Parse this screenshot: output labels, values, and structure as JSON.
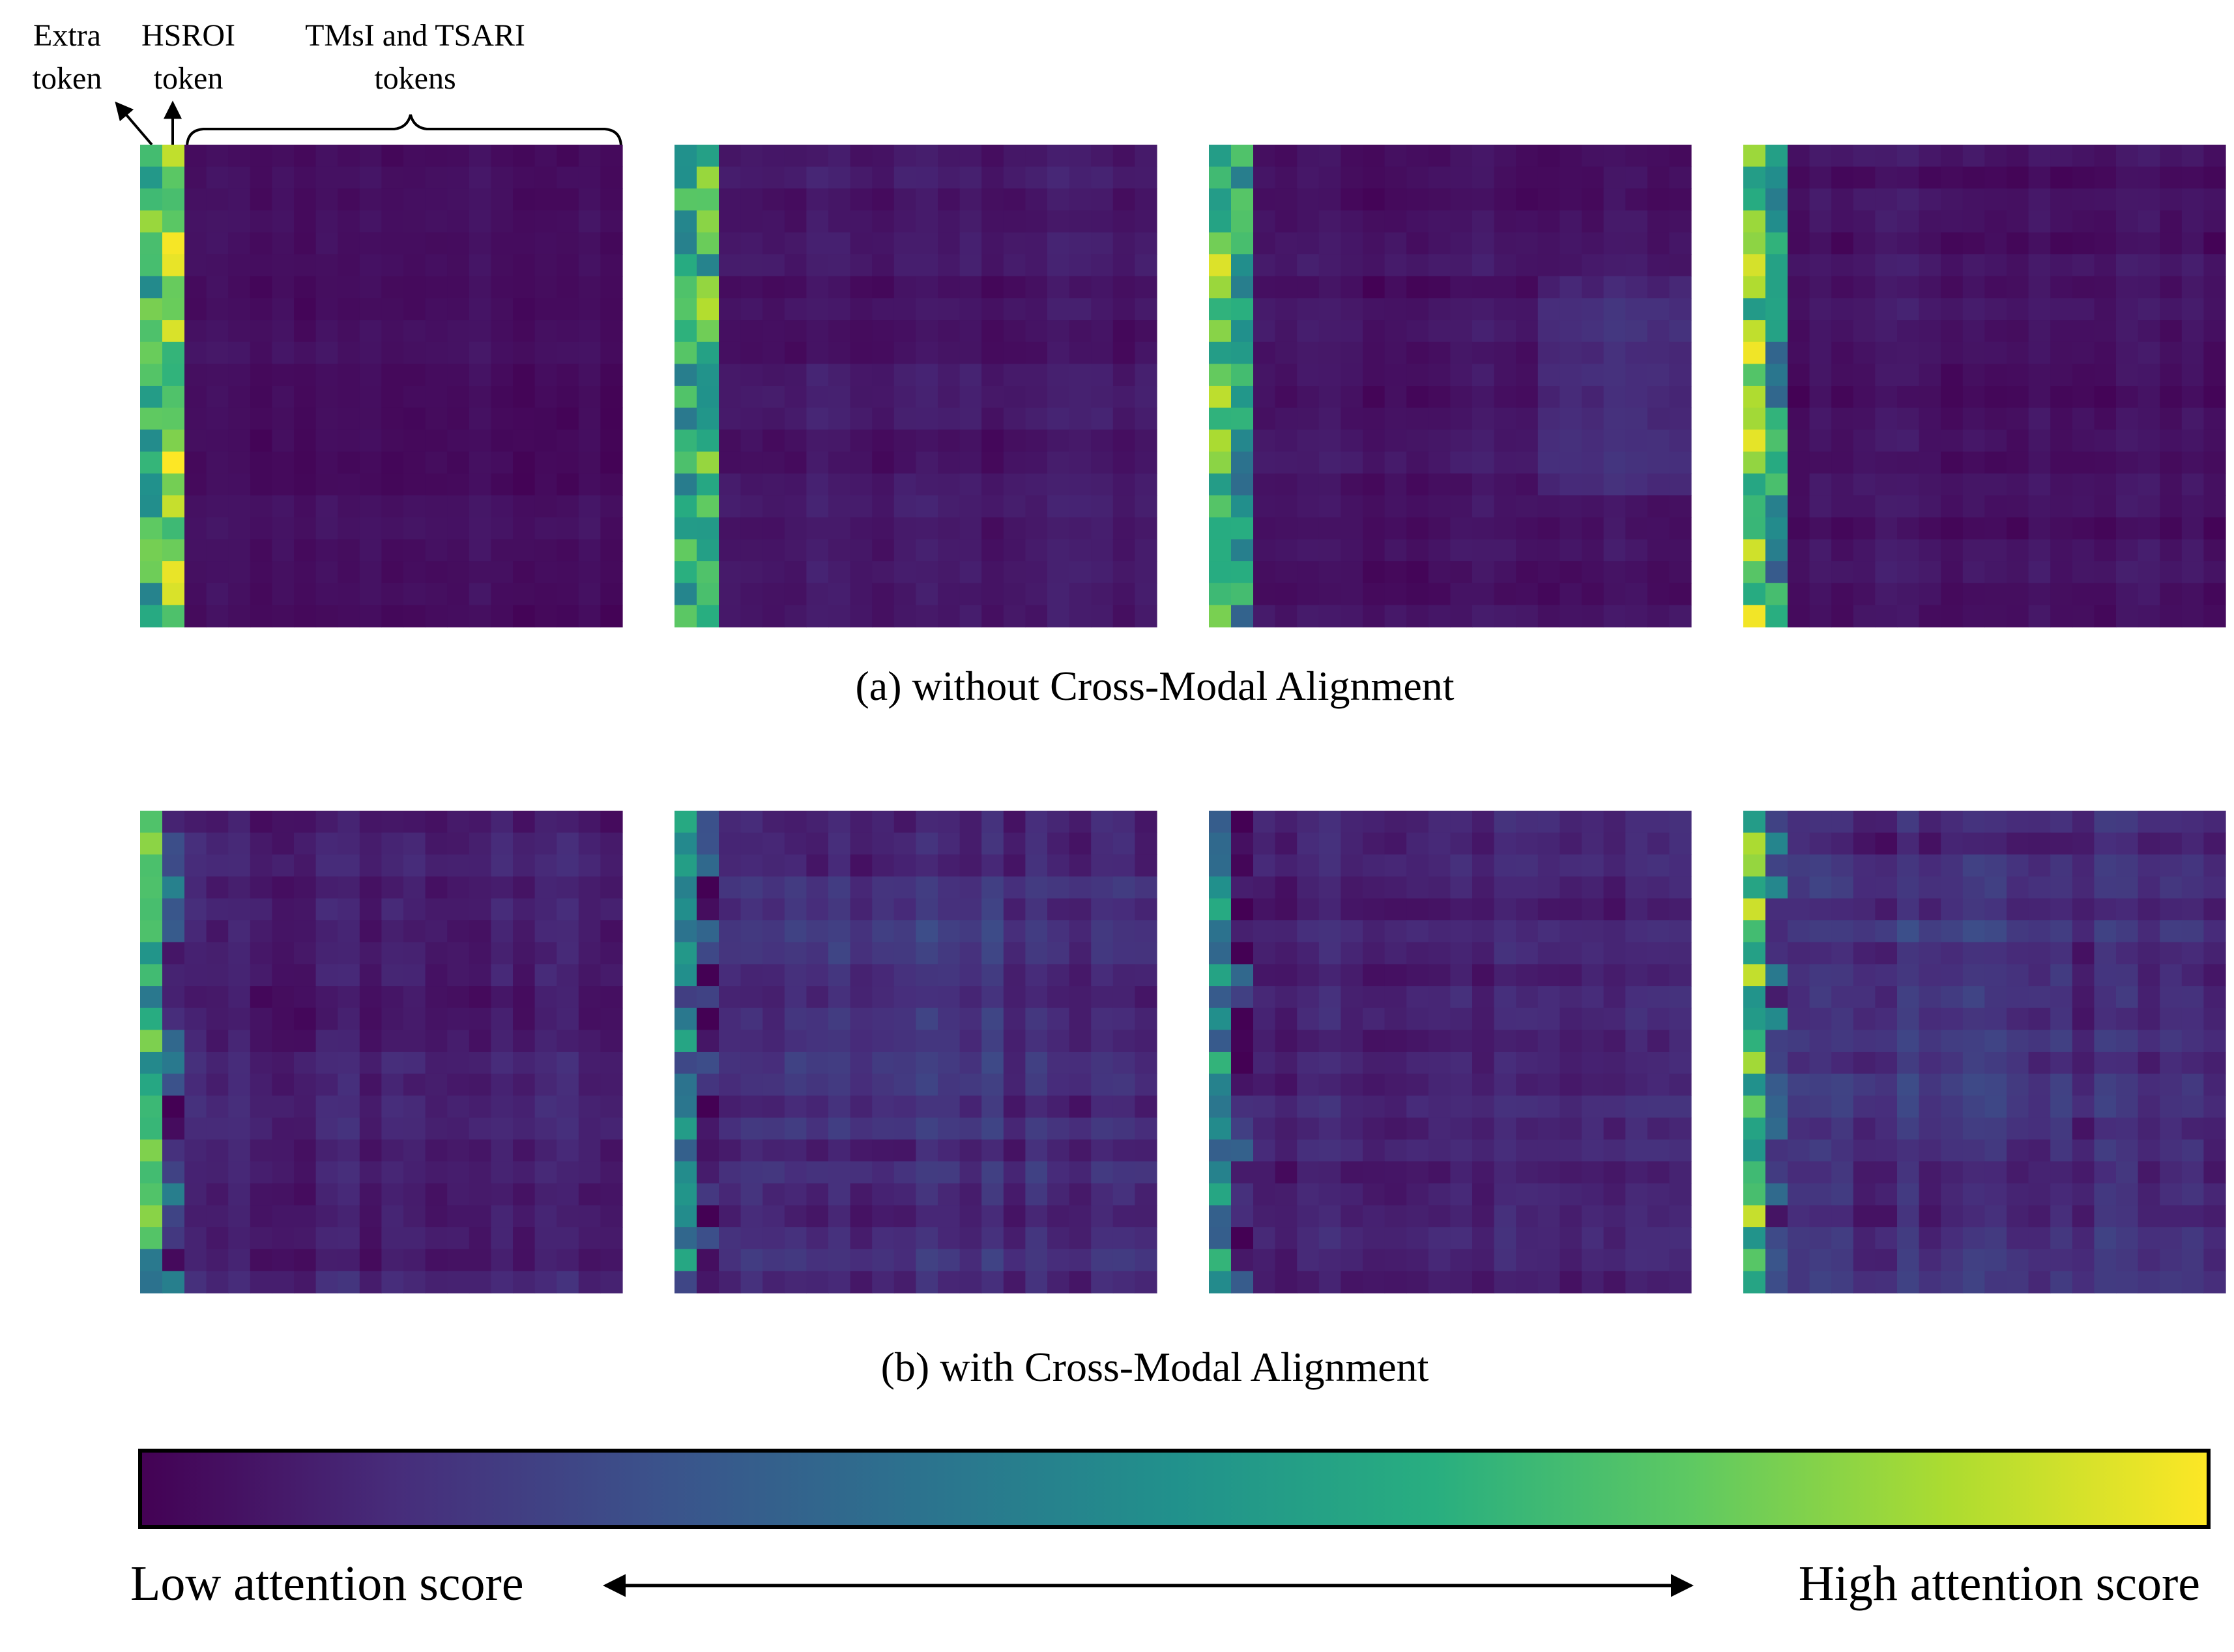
{
  "annotations": {
    "extra_token": [
      "Extra",
      "token"
    ],
    "hsroi_token": [
      "HSROI",
      "token"
    ],
    "tmsi_tsari_tokens": [
      "TMsI and TSARI",
      "tokens"
    ]
  },
  "captions": {
    "a": "(a)  without Cross-Modal Alignment",
    "b": "(b)  with Cross-Modal Alignment"
  },
  "colorbar": {
    "low_label": "Low attention score",
    "high_label": "High attention score",
    "colormap": "viridis"
  },
  "chart_data": {
    "type": "heatmap",
    "colormap": "viridis",
    "value_range": [
      0,
      1
    ],
    "layout": "2 rows x 4 panels",
    "rows": [
      {
        "caption": "(a)  without Cross-Modal Alignment",
        "panels": [
          {
            "column_values": [
              0.62,
              0.8
            ],
            "background_level": 0.04,
            "variation": 0.03,
            "block_highlight": null
          },
          {
            "column_values": [
              0.58,
              0.66
            ],
            "background_level": 0.06,
            "variation": 0.04,
            "block_highlight": null
          },
          {
            "column_values": [
              0.74,
              0.52
            ],
            "background_level": 0.05,
            "variation": 0.04,
            "block_highlight": "bottom-right"
          },
          {
            "column_values": [
              0.76,
              0.5
            ],
            "background_level": 0.05,
            "variation": 0.04,
            "block_highlight": null
          }
        ]
      },
      {
        "caption": "(b)  with Cross-Modal Alignment",
        "panels": [
          {
            "column_values": [
              0.6,
              0.22
            ],
            "background_level": 0.08,
            "variation": 0.06,
            "block_highlight": null
          },
          {
            "column_values": [
              0.4,
              0.12
            ],
            "background_level": 0.12,
            "variation": 0.07,
            "block_highlight": "center"
          },
          {
            "column_values": [
              0.45,
              0.14
            ],
            "background_level": 0.09,
            "variation": 0.06,
            "block_highlight": null
          },
          {
            "column_values": [
              0.72,
              0.26
            ],
            "background_level": 0.12,
            "variation": 0.08,
            "block_highlight": "center"
          }
        ]
      }
    ],
    "colorbar": {
      "min_label": "Low attention score",
      "max_label": "High attention score"
    }
  }
}
